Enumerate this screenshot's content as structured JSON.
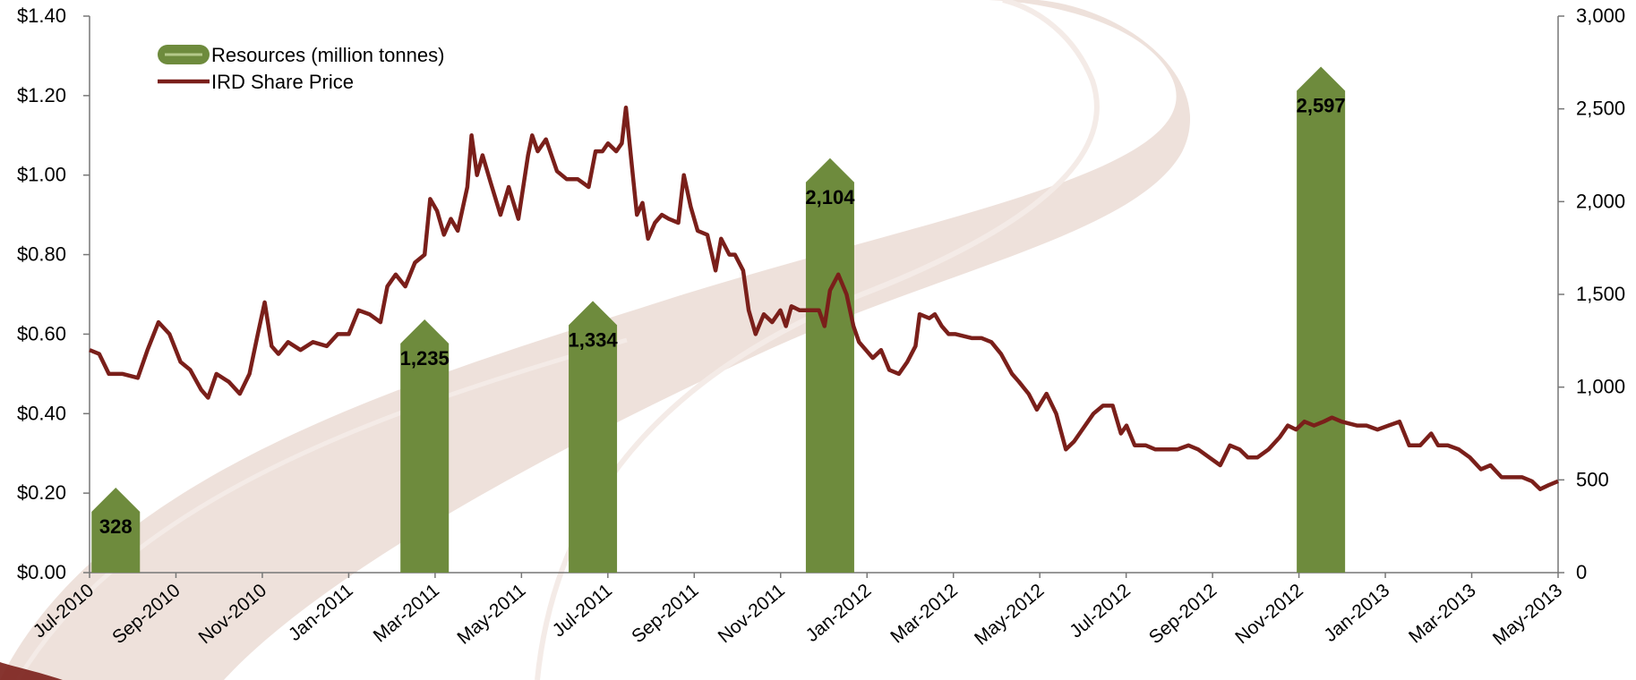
{
  "chart_data": {
    "type": "bar+line",
    "title": "",
    "legend_position": "top-left",
    "grid": false,
    "colors": {
      "resources": "#6e8b3d",
      "share_price": "#7a1f1a",
      "background_swoosh": "#ead9d2"
    },
    "legend": [
      {
        "label": "Resources (million tonnes)",
        "kind": "bar"
      },
      {
        "label": "IRD Share Price",
        "kind": "line"
      }
    ],
    "x_axis": {
      "type": "date",
      "range": [
        "2010-07-01",
        "2013-05-31"
      ],
      "tick_labels": [
        "Jul-2010",
        "Sep-2010",
        "Nov-2010",
        "Jan-2011",
        "Mar-2011",
        "May-2011",
        "Jul-2011",
        "Sep-2011",
        "Nov-2011",
        "Jan-2012",
        "Mar-2012",
        "May-2012",
        "Jul-2012",
        "Sep-2012",
        "Nov-2012",
        "Jan-2013",
        "Mar-2013",
        "May-2013"
      ]
    },
    "y_left": {
      "range": [
        0,
        1.4
      ],
      "tick_labels": [
        "$0.00",
        "$0.20",
        "$0.40",
        "$0.60",
        "$0.80",
        "$1.00",
        "$1.20",
        "$1.40"
      ]
    },
    "y_right": {
      "range": [
        0,
        3000
      ],
      "tick_labels": [
        "0",
        "500",
        "1,000",
        "1,500",
        "2,000",
        "2,500",
        "3,000"
      ]
    },
    "bars": [
      {
        "date": "2010-07-20",
        "value": 328,
        "label": "328"
      },
      {
        "date": "2011-03-01",
        "value": 1235,
        "label": "1,235"
      },
      {
        "date": "2011-07-01",
        "value": 1334,
        "label": "1,334"
      },
      {
        "date": "2011-12-20",
        "value": 2104,
        "label": "2,104"
      },
      {
        "date": "2012-12-10",
        "value": 2597,
        "label": "2,597"
      }
    ],
    "series": [
      {
        "name": "IRD Share Price",
        "axis": "left",
        "points": [
          [
            "2010-07-01",
            0.56
          ],
          [
            "2010-07-08",
            0.55
          ],
          [
            "2010-07-15",
            0.5
          ],
          [
            "2010-07-25",
            0.5
          ],
          [
            "2010-08-05",
            0.49
          ],
          [
            "2010-08-12",
            0.56
          ],
          [
            "2010-08-20",
            0.63
          ],
          [
            "2010-08-28",
            0.6
          ],
          [
            "2010-09-05",
            0.53
          ],
          [
            "2010-09-12",
            0.51
          ],
          [
            "2010-09-20",
            0.46
          ],
          [
            "2010-09-25",
            0.44
          ],
          [
            "2010-10-01",
            0.5
          ],
          [
            "2010-10-10",
            0.48
          ],
          [
            "2010-10-18",
            0.45
          ],
          [
            "2010-10-25",
            0.5
          ],
          [
            "2010-10-31",
            0.6
          ],
          [
            "2010-11-05",
            0.68
          ],
          [
            "2010-11-10",
            0.57
          ],
          [
            "2010-11-15",
            0.55
          ],
          [
            "2010-11-22",
            0.58
          ],
          [
            "2010-12-01",
            0.56
          ],
          [
            "2010-12-10",
            0.58
          ],
          [
            "2010-12-20",
            0.57
          ],
          [
            "2010-12-28",
            0.6
          ],
          [
            "2011-01-05",
            0.6
          ],
          [
            "2011-01-12",
            0.66
          ],
          [
            "2011-01-20",
            0.65
          ],
          [
            "2011-01-28",
            0.63
          ],
          [
            "2011-02-02",
            0.72
          ],
          [
            "2011-02-08",
            0.75
          ],
          [
            "2011-02-15",
            0.72
          ],
          [
            "2011-02-22",
            0.78
          ],
          [
            "2011-03-01",
            0.8
          ],
          [
            "2011-03-05",
            0.94
          ],
          [
            "2011-03-10",
            0.91
          ],
          [
            "2011-03-15",
            0.85
          ],
          [
            "2011-03-20",
            0.89
          ],
          [
            "2011-03-25",
            0.86
          ],
          [
            "2011-04-01",
            0.97
          ],
          [
            "2011-04-04",
            1.1
          ],
          [
            "2011-04-08",
            1.0
          ],
          [
            "2011-04-12",
            1.05
          ],
          [
            "2011-04-18",
            0.98
          ],
          [
            "2011-04-25",
            0.9
          ],
          [
            "2011-05-01",
            0.97
          ],
          [
            "2011-05-08",
            0.89
          ],
          [
            "2011-05-15",
            1.05
          ],
          [
            "2011-05-18",
            1.1
          ],
          [
            "2011-05-22",
            1.06
          ],
          [
            "2011-05-28",
            1.09
          ],
          [
            "2011-06-05",
            1.01
          ],
          [
            "2011-06-12",
            0.99
          ],
          [
            "2011-06-20",
            0.99
          ],
          [
            "2011-06-28",
            0.97
          ],
          [
            "2011-07-03",
            1.06
          ],
          [
            "2011-07-08",
            1.06
          ],
          [
            "2011-07-12",
            1.08
          ],
          [
            "2011-07-18",
            1.06
          ],
          [
            "2011-07-22",
            1.08
          ],
          [
            "2011-07-25",
            1.17
          ],
          [
            "2011-07-30",
            1.0
          ],
          [
            "2011-08-02",
            0.9
          ],
          [
            "2011-08-06",
            0.93
          ],
          [
            "2011-08-10",
            0.84
          ],
          [
            "2011-08-15",
            0.88
          ],
          [
            "2011-08-20",
            0.9
          ],
          [
            "2011-08-25",
            0.89
          ],
          [
            "2011-09-01",
            0.88
          ],
          [
            "2011-09-05",
            1.0
          ],
          [
            "2011-09-10",
            0.92
          ],
          [
            "2011-09-15",
            0.86
          ],
          [
            "2011-09-22",
            0.85
          ],
          [
            "2011-09-28",
            0.76
          ],
          [
            "2011-10-02",
            0.84
          ],
          [
            "2011-10-08",
            0.8
          ],
          [
            "2011-10-12",
            0.8
          ],
          [
            "2011-10-18",
            0.76
          ],
          [
            "2011-10-22",
            0.66
          ],
          [
            "2011-10-27",
            0.6
          ],
          [
            "2011-11-02",
            0.65
          ],
          [
            "2011-11-08",
            0.63
          ],
          [
            "2011-11-14",
            0.66
          ],
          [
            "2011-11-18",
            0.62
          ],
          [
            "2011-11-22",
            0.67
          ],
          [
            "2011-11-28",
            0.66
          ],
          [
            "2011-12-05",
            0.66
          ],
          [
            "2011-12-12",
            0.66
          ],
          [
            "2011-12-16",
            0.62
          ],
          [
            "2011-12-20",
            0.71
          ],
          [
            "2011-12-26",
            0.75
          ],
          [
            "2012-01-01",
            0.7
          ],
          [
            "2012-01-06",
            0.62
          ],
          [
            "2012-01-10",
            0.58
          ],
          [
            "2012-01-15",
            0.56
          ],
          [
            "2012-01-20",
            0.54
          ],
          [
            "2012-01-26",
            0.56
          ],
          [
            "2012-02-01",
            0.51
          ],
          [
            "2012-02-08",
            0.5
          ],
          [
            "2012-02-14",
            0.53
          ],
          [
            "2012-02-20",
            0.57
          ],
          [
            "2012-02-23",
            0.65
          ],
          [
            "2012-03-01",
            0.64
          ],
          [
            "2012-03-05",
            0.65
          ],
          [
            "2012-03-10",
            0.62
          ],
          [
            "2012-03-15",
            0.6
          ],
          [
            "2012-03-20",
            0.6
          ],
          [
            "2012-04-01",
            0.59
          ],
          [
            "2012-04-08",
            0.59
          ],
          [
            "2012-04-15",
            0.58
          ],
          [
            "2012-04-22",
            0.55
          ],
          [
            "2012-04-30",
            0.5
          ],
          [
            "2012-05-05",
            0.48
          ],
          [
            "2012-05-12",
            0.45
          ],
          [
            "2012-05-18",
            0.41
          ],
          [
            "2012-05-25",
            0.45
          ],
          [
            "2012-06-01",
            0.4
          ],
          [
            "2012-06-08",
            0.31
          ],
          [
            "2012-06-14",
            0.33
          ],
          [
            "2012-06-20",
            0.36
          ],
          [
            "2012-06-28",
            0.4
          ],
          [
            "2012-07-05",
            0.42
          ],
          [
            "2012-07-12",
            0.42
          ],
          [
            "2012-07-18",
            0.35
          ],
          [
            "2012-07-22",
            0.37
          ],
          [
            "2012-07-28",
            0.32
          ],
          [
            "2012-08-05",
            0.32
          ],
          [
            "2012-08-12",
            0.31
          ],
          [
            "2012-08-20",
            0.31
          ],
          [
            "2012-08-28",
            0.31
          ],
          [
            "2012-09-05",
            0.32
          ],
          [
            "2012-09-12",
            0.31
          ],
          [
            "2012-09-20",
            0.29
          ],
          [
            "2012-09-28",
            0.27
          ],
          [
            "2012-10-05",
            0.32
          ],
          [
            "2012-10-12",
            0.31
          ],
          [
            "2012-10-18",
            0.29
          ],
          [
            "2012-10-25",
            0.29
          ],
          [
            "2012-11-02",
            0.31
          ],
          [
            "2012-11-10",
            0.34
          ],
          [
            "2012-11-16",
            0.37
          ],
          [
            "2012-11-22",
            0.36
          ],
          [
            "2012-11-28",
            0.38
          ],
          [
            "2012-12-05",
            0.37
          ],
          [
            "2012-12-12",
            0.38
          ],
          [
            "2012-12-18",
            0.39
          ],
          [
            "2012-12-25",
            0.38
          ],
          [
            "2013-01-05",
            0.37
          ],
          [
            "2013-01-12",
            0.37
          ],
          [
            "2013-01-20",
            0.36
          ],
          [
            "2013-01-28",
            0.37
          ],
          [
            "2013-02-05",
            0.38
          ],
          [
            "2013-02-12",
            0.32
          ],
          [
            "2013-02-20",
            0.32
          ],
          [
            "2013-02-28",
            0.35
          ],
          [
            "2013-03-05",
            0.32
          ],
          [
            "2013-03-12",
            0.32
          ],
          [
            "2013-03-20",
            0.31
          ],
          [
            "2013-03-28",
            0.29
          ],
          [
            "2013-04-05",
            0.26
          ],
          [
            "2013-04-12",
            0.27
          ],
          [
            "2013-04-20",
            0.24
          ],
          [
            "2013-04-28",
            0.24
          ],
          [
            "2013-05-05",
            0.24
          ],
          [
            "2013-05-12",
            0.23
          ],
          [
            "2013-05-18",
            0.21
          ],
          [
            "2013-05-24",
            0.22
          ],
          [
            "2013-05-31",
            0.23
          ]
        ]
      }
    ]
  }
}
